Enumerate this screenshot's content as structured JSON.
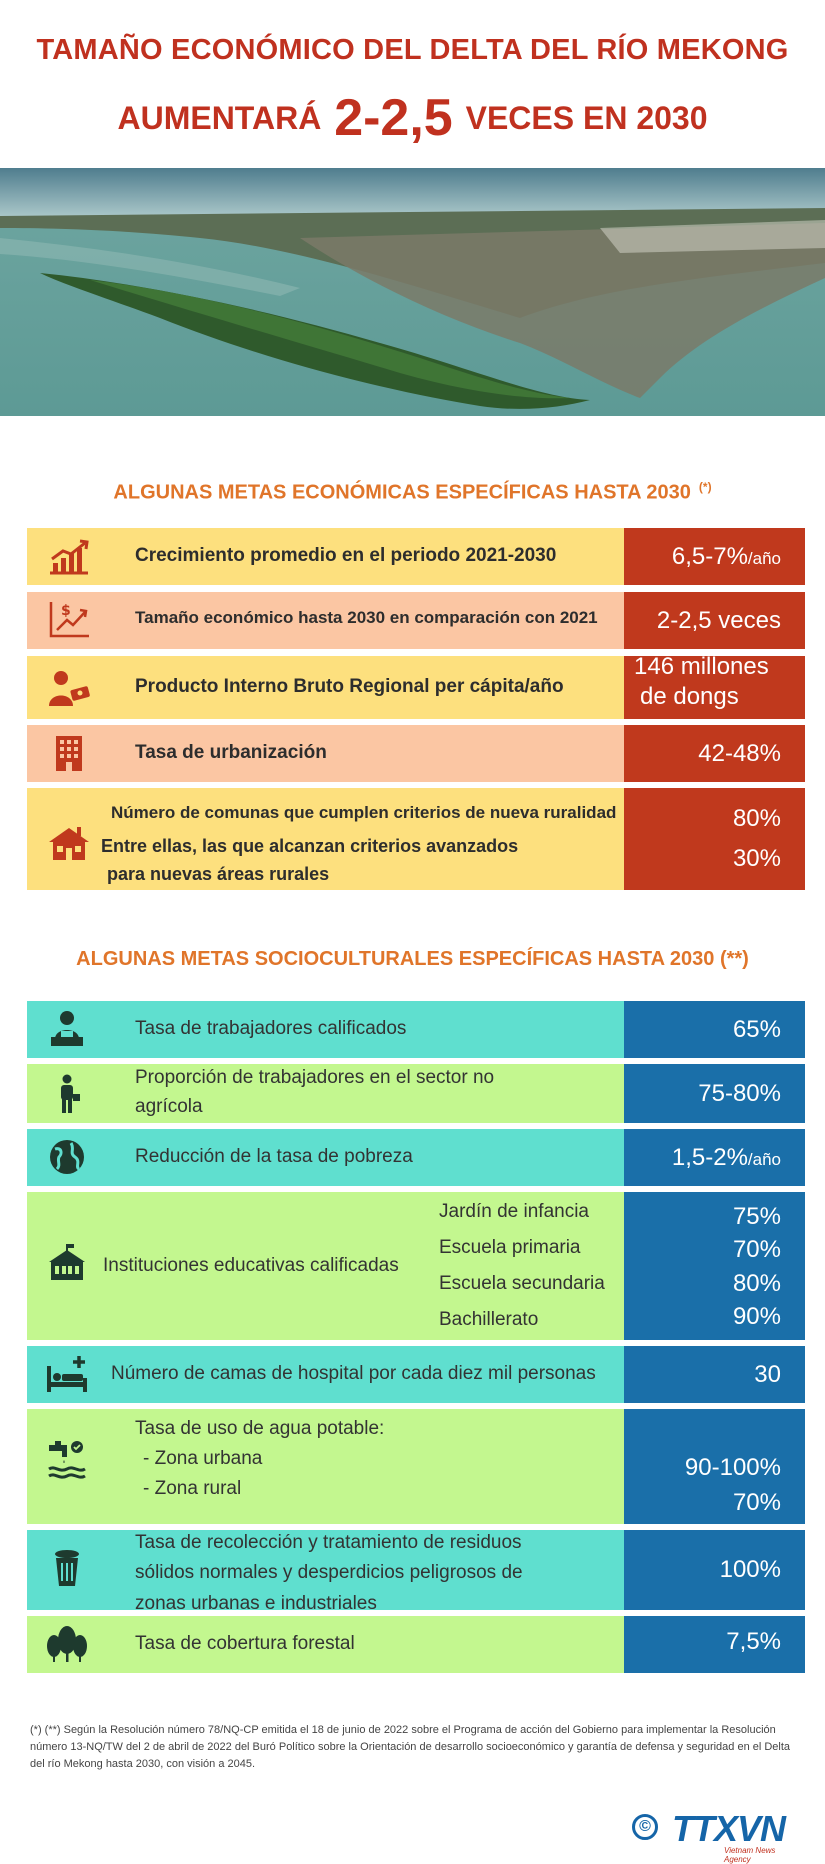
{
  "header": {
    "line1": "TAMAÑO ECONÓMICO DEL DELTA DEL RÍO MEKONG",
    "line2_pre": "AUMENTARÁ",
    "line2_big": "2-2,5",
    "line2_post": "VECES EN 2030"
  },
  "economic": {
    "title": "ALGUNAS METAS ECONÓMICAS ESPECÍFICAS HASTA 2030",
    "title_mark": "(*)",
    "rows": [
      {
        "label": "Crecimiento promedio en el periodo 2021-2030",
        "value": "6,5-7%",
        "unit": "/año",
        "icon": "growth-chart-icon"
      },
      {
        "label": "Tamaño económico hasta 2030 en comparación con 2021",
        "value": "2-2,5 veces",
        "icon": "money-chart-icon"
      },
      {
        "label": "Producto Interno Bruto Regional per cápita/año",
        "value_line1": "146 millones",
        "value_line2": "de dongs",
        "icon": "person-money-icon"
      },
      {
        "label": "Tasa de urbanización",
        "value": "42-48%",
        "icon": "building-icon"
      },
      {
        "label1": "Número de comunas que cumplen criterios de nueva ruralidad",
        "value1": "80%",
        "label2_line1": "Entre ellas, las que alcanzan criterios avanzados",
        "label2_line2": "para nuevas áreas rurales",
        "value2": "30%",
        "icon": "house-icon"
      }
    ]
  },
  "social": {
    "title": "ALGUNAS METAS SOCIOCULTURALES ESPECÍFICAS HASTA 2030 (**)",
    "rows": [
      {
        "label": "Tasa de trabajadores calificados",
        "value": "65%",
        "icon": "worker-desk-icon"
      },
      {
        "label_line1": "Proporción de trabajadores en el sector no",
        "label_line2": "agrícola",
        "value": "75-80%",
        "icon": "worker-icon"
      },
      {
        "label": "Reducción de la tasa de pobreza",
        "value": "1,5-2%",
        "unit": "/año",
        "icon": "globe-icon"
      },
      {
        "label": "Instituciones educativas calificadas",
        "icon": "school-icon",
        "items": [
          {
            "name": "Jardín de infancia",
            "value": "75%"
          },
          {
            "name": "Escuela primaria",
            "value": "70%"
          },
          {
            "name": "Escuela secundaria",
            "value": "80%"
          },
          {
            "name": "Bachillerato",
            "value": "90%"
          }
        ]
      },
      {
        "label": "Número de camas de hospital por cada diez mil personas",
        "value": "30",
        "icon": "hospital-bed-icon"
      },
      {
        "label": "Tasa de uso de agua potable:",
        "sub1": "- Zona urbana",
        "sub2": "- Zona rural",
        "value1": "90-100%",
        "value2": "70%",
        "icon": "water-tap-icon"
      },
      {
        "label_line1": "Tasa de recolección y tratamiento de residuos",
        "label_line2": "sólidos normales y desperdicios peligrosos de",
        "label_line3": "zonas urbanas e industriales",
        "value": "100%",
        "icon": "trash-bin-icon"
      },
      {
        "label": "Tasa de cobertura forestal",
        "value": "7,5%",
        "icon": "trees-icon"
      }
    ]
  },
  "footnote": "(*) (**) Según la Resolución número 78/NQ-CP emitida el 18 de junio de 2022 sobre el Programa de acción del Gobierno para implementar la Resolución número 13-NQ/TW del 2 de abril de 2022 del Buró Político sobre la Orientación de desarrollo socioeconómico y garantía de defensa y seguridad en el Delta del río Mekong hasta 2030, con visión a 2045.",
  "logo": {
    "text": "TTXVN",
    "sub": "Vietnam News Agency",
    "copyright": "©"
  },
  "colors": {
    "title_red": "#c0311f",
    "section_orange": "#e0752a",
    "econ_value_bg": "#c0391d",
    "soc_value_bg": "#1a6fa9",
    "yellow": "#fde07e",
    "peach": "#fbc6a3",
    "teal": "#5fdfcf",
    "lime": "#c3f78f"
  }
}
